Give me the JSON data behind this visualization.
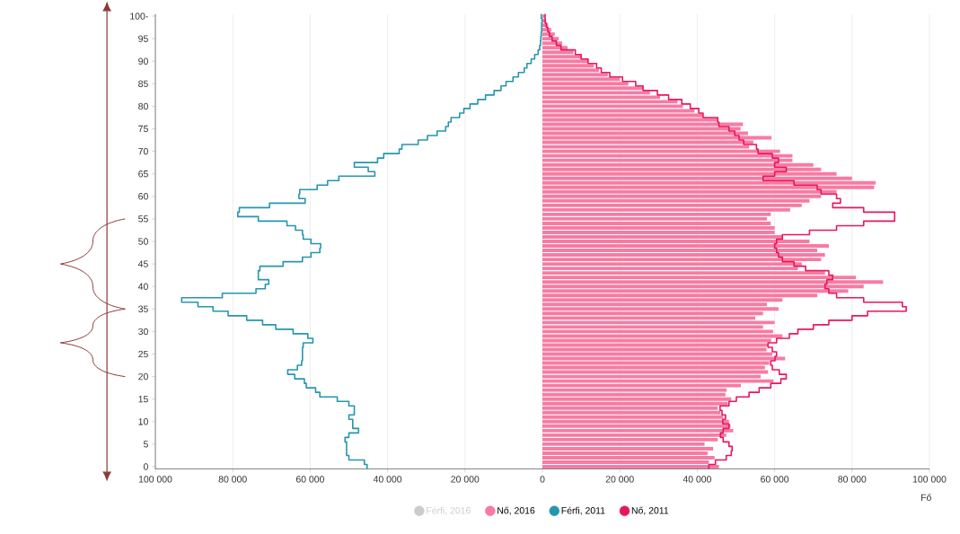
{
  "chart_data": {
    "type": "bar",
    "orientation": "horizontal",
    "xlabel": "Fő",
    "categories": [
      "100-",
      null,
      null,
      null,
      null,
      "95",
      null,
      null,
      null,
      null,
      "90",
      null,
      null,
      null,
      null,
      "85",
      null,
      null,
      null,
      null,
      "80",
      null,
      null,
      null,
      null,
      "75",
      null,
      null,
      null,
      null,
      "70",
      null,
      null,
      null,
      null,
      "65",
      null,
      null,
      null,
      null,
      "60",
      null,
      null,
      null,
      null,
      "55",
      null,
      null,
      null,
      null,
      "50",
      null,
      null,
      null,
      null,
      "45",
      null,
      null,
      null,
      null,
      "40",
      null,
      null,
      null,
      null,
      "35",
      null,
      null,
      null,
      null,
      "30",
      null,
      null,
      null,
      null,
      "25",
      null,
      null,
      null,
      null,
      "20",
      null,
      null,
      null,
      null,
      "15",
      null,
      null,
      null,
      null,
      "10",
      null,
      null,
      null,
      null,
      "5",
      null,
      null,
      null,
      null,
      "0"
    ],
    "series": [
      {
        "name": "Férfi, 2016",
        "color": "#cccccc",
        "values": [
          null,
          null,
          null,
          null,
          null,
          null,
          null,
          null,
          null,
          null,
          null,
          null,
          null,
          null,
          null,
          null,
          null,
          null,
          null,
          null,
          null,
          null,
          null,
          null,
          null,
          null,
          null,
          null,
          null,
          null,
          null,
          null,
          null,
          null,
          null,
          null,
          null,
          null,
          null,
          null,
          null,
          null,
          null,
          null,
          null,
          null,
          null,
          null,
          null,
          null,
          null,
          null,
          null,
          null,
          null,
          null,
          null,
          null,
          null,
          null,
          null,
          null,
          null,
          null,
          null,
          null,
          null,
          null,
          null,
          null,
          null,
          null,
          null,
          null,
          null,
          null,
          null,
          null,
          null,
          null,
          null,
          null,
          null,
          null,
          null,
          null,
          null,
          null,
          null,
          null,
          null,
          null,
          null,
          null,
          null,
          null,
          null,
          null,
          null,
          null,
          null
        ]
      },
      {
        "name": "Nő, 2016",
        "color": "#f77ba3",
        "values": [
          600,
          900,
          1500,
          2300,
          3200,
          4200,
          5100,
          6500,
          8000,
          10000,
          11800,
          13300,
          14600,
          16900,
          20000,
          22200,
          26000,
          27800,
          30400,
          34900,
          36300,
          39300,
          41500,
          45300,
          51800,
          51200,
          53100,
          59200,
          54500,
          53400,
          61400,
          64600,
          64600,
          70000,
          72000,
          76000,
          80000,
          86100,
          85700,
          76000,
          72000,
          69000,
          67000,
          64000,
          59000,
          58000,
          59000,
          60000,
          60000,
          62000,
          69000,
          74000,
          71000,
          73000,
          72000,
          67000,
          66000,
          73000,
          81000,
          88000,
          83000,
          79000,
          71000,
          62000,
          58000,
          61000,
          57000,
          55000,
          60000,
          57000,
          59600,
          62000,
          59100,
          58300,
          57900,
          59400,
          62700,
          58600,
          57500,
          58300,
          56400,
          59700,
          51300,
          47600,
          47300,
          48800,
          47900,
          45300,
          46000,
          46700,
          48200,
          48600,
          49300,
          47500,
          45300,
          41900,
          44100,
          42700,
          44500,
          43000,
          45600
        ]
      },
      {
        "name": "Férfi, 2011",
        "type": "step",
        "color": "#2596ae",
        "values": [
          -300,
          -100,
          -200,
          -200,
          -300,
          -400,
          -500,
          -700,
          -1100,
          -2000,
          -2900,
          -4000,
          -4700,
          -6200,
          -7600,
          -9400,
          -10700,
          -12500,
          -14700,
          -16700,
          -18700,
          -20300,
          -21400,
          -23600,
          -24300,
          -25000,
          -27200,
          -29700,
          -32100,
          -36300,
          -37000,
          -41000,
          -42600,
          -48600,
          -45000,
          -43300,
          -52600,
          -55500,
          -58200,
          -62700,
          -62900,
          -61300,
          -70500,
          -78300,
          -78700,
          -73400,
          -66000,
          -63800,
          -62000,
          -61800,
          -59800,
          -57300,
          -57500,
          -59800,
          -62000,
          -67000,
          -73000,
          -73400,
          -73400,
          -70700,
          -71600,
          -74000,
          -82700,
          -93200,
          -89000,
          -85100,
          -81200,
          -76400,
          -72300,
          -68900,
          -64400,
          -60600,
          -59300,
          -61800,
          -62000,
          -62000,
          -62000,
          -62200,
          -63300,
          -65800,
          -64000,
          -61500,
          -61000,
          -58600,
          -57500,
          -53000,
          -50000,
          -48600,
          -48600,
          -50000,
          -49000,
          -49000,
          -47500,
          -50000,
          -51000,
          -50600,
          -50600,
          -50600,
          -50000,
          -46000,
          -45300
        ]
      },
      {
        "name": "Nő, 2011",
        "type": "step",
        "color": "#e8165f",
        "values": [
          700,
          700,
          1000,
          1400,
          1800,
          2500,
          3600,
          4800,
          8500,
          10000,
          11800,
          14000,
          15200,
          17400,
          20700,
          24100,
          26000,
          29700,
          32600,
          36000,
          38200,
          40400,
          41500,
          45300,
          45600,
          48200,
          49700,
          50800,
          52000,
          55300,
          55700,
          59400,
          61000,
          60000,
          63000,
          60000,
          57000,
          65000,
          71000,
          72000,
          76000,
          77000,
          75000,
          83000,
          91000,
          91000,
          83000,
          76000,
          69000,
          62000,
          60500,
          60000,
          60500,
          61000,
          62000,
          65000,
          68000,
          74000,
          75000,
          73500,
          73000,
          74000,
          76000,
          83000,
          93000,
          94000,
          84000,
          80000,
          74000,
          70000,
          66000,
          63800,
          60500,
          58300,
          59400,
          60500,
          60100,
          59000,
          59400,
          61200,
          63000,
          61600,
          59000,
          56000,
          53400,
          50100,
          48200,
          45900,
          46400,
          47300,
          46600,
          48200,
          46700,
          46000,
          46700,
          48200,
          49000,
          48800,
          47500,
          44700,
          43000
        ]
      }
    ],
    "xlim": [
      -100000,
      100000
    ],
    "xticks": [
      {
        "value": -100000,
        "label": "100 000"
      },
      {
        "value": -80000,
        "label": "80 000"
      },
      {
        "value": -60000,
        "label": "60 000"
      },
      {
        "value": -40000,
        "label": "40 000"
      },
      {
        "value": -20000,
        "label": "20 000"
      },
      0,
      {
        "value": 20000,
        "label": "20 000"
      },
      {
        "value": 40000,
        "label": "40 000"
      },
      {
        "value": 60000,
        "label": "60 000"
      },
      {
        "value": 80000,
        "label": "80 000"
      },
      {
        "value": 100000,
        "label": "100 000"
      }
    ],
    "grid": "x",
    "legend": "bottom"
  }
}
